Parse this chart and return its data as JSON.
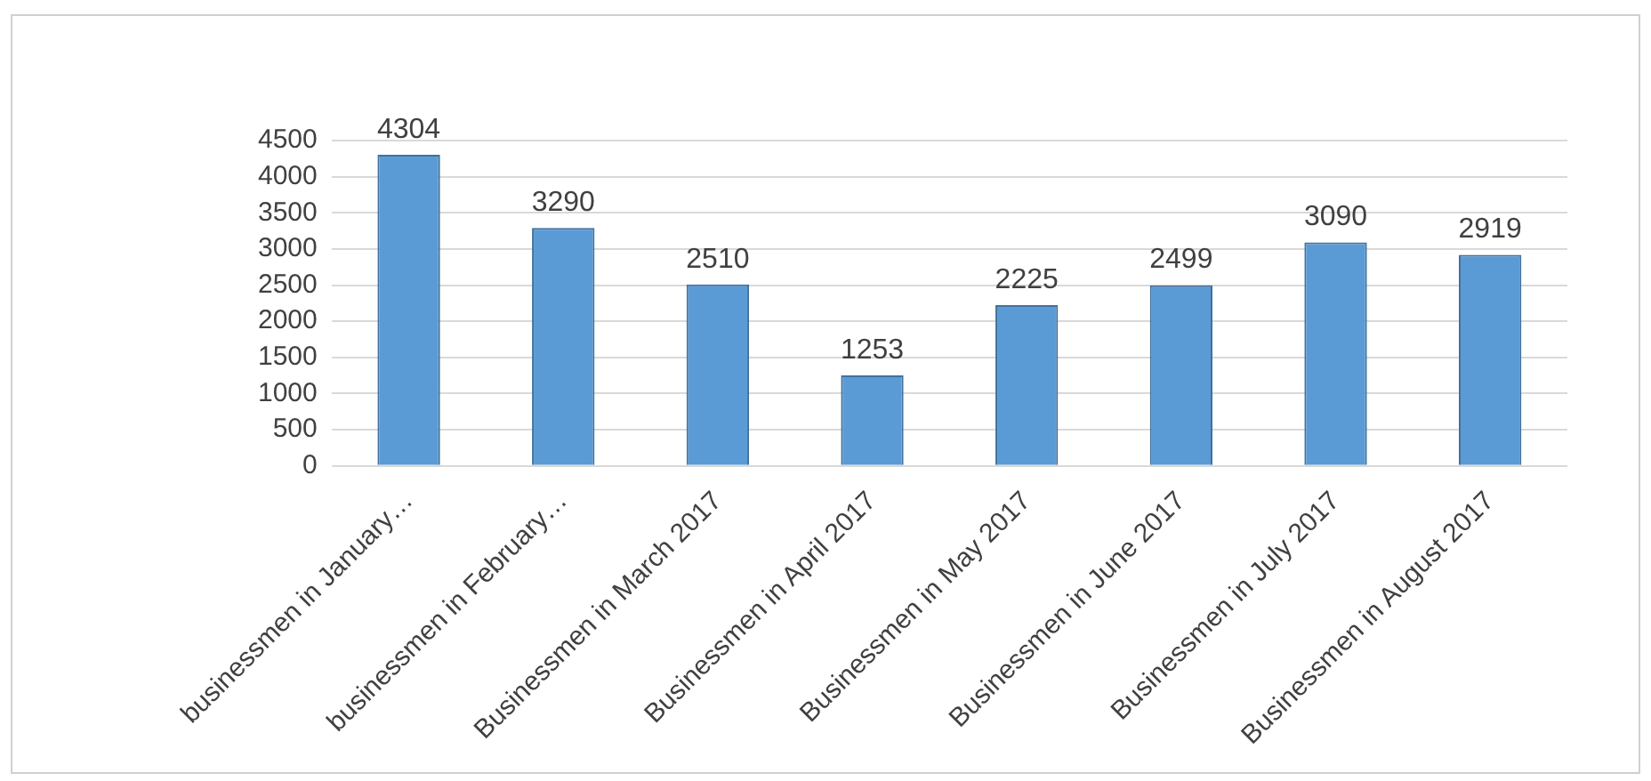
{
  "chart_data": {
    "type": "bar",
    "categories": [
      "businessmen in January…",
      "businessmen in February…",
      "Businessmen in March 2017",
      "Businessmen in April 2017",
      "Businessmen in May 2017",
      "Businessmen in June 2017",
      "Businessmen in July 2017",
      "Businessmen in August 2017"
    ],
    "values": [
      4304,
      3290,
      2510,
      1253,
      2225,
      2499,
      3090,
      2919
    ],
    "color": "#5b9bd5",
    "ylim": [
      0,
      4500
    ],
    "yticks": [
      0,
      500,
      1000,
      1500,
      2000,
      2500,
      3000,
      3500,
      4000,
      4500
    ],
    "grid": "y",
    "data_labels": true
  }
}
